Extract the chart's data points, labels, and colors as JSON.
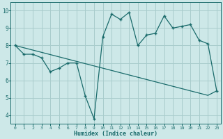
{
  "line1_x": [
    0,
    1,
    2,
    3,
    4,
    5,
    6,
    7,
    8,
    9,
    10,
    11,
    12,
    13,
    14,
    15,
    16,
    17,
    18,
    19,
    20,
    21,
    22,
    23
  ],
  "line1_y": [
    8.0,
    7.5,
    7.5,
    7.3,
    6.5,
    6.7,
    7.0,
    7.0,
    5.1,
    3.8,
    8.5,
    9.8,
    9.5,
    9.9,
    8.0,
    8.6,
    8.7,
    9.7,
    9.0,
    9.1,
    9.2,
    8.3,
    8.1,
    5.4
  ],
  "line2_x": [
    0,
    1,
    2,
    3,
    4,
    5,
    6,
    7,
    8,
    9,
    10,
    11,
    12,
    13,
    14,
    15,
    16,
    17,
    18,
    19,
    20,
    21,
    22,
    23
  ],
  "line2_y": [
    8.0,
    7.87,
    7.74,
    7.61,
    7.48,
    7.35,
    7.22,
    7.09,
    6.96,
    6.83,
    6.7,
    6.57,
    6.44,
    6.31,
    6.18,
    6.05,
    5.92,
    5.79,
    5.66,
    5.53,
    5.4,
    5.27,
    5.14,
    5.4
  ],
  "line_color": "#1a6b6b",
  "bg_color": "#cde8e8",
  "grid_color": "#a8cccc",
  "xlabel": "Humidex (Indice chaleur)",
  "xlim": [
    -0.5,
    23.5
  ],
  "ylim": [
    3.5,
    10.5
  ],
  "yticks": [
    4,
    5,
    6,
    7,
    8,
    9,
    10
  ],
  "xticks": [
    0,
    1,
    2,
    3,
    4,
    5,
    6,
    7,
    8,
    9,
    10,
    11,
    12,
    13,
    14,
    15,
    16,
    17,
    18,
    19,
    20,
    21,
    22,
    23
  ]
}
